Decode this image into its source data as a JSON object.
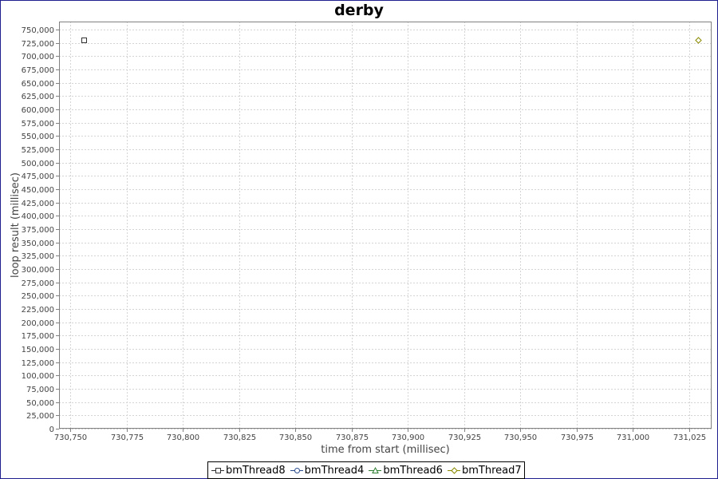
{
  "chart_data": {
    "type": "scatter",
    "title": "derby",
    "xlabel": "time from start (millisec)",
    "ylabel": "loop result (millisec)",
    "xlim": [
      730745,
      731035
    ],
    "ylim": [
      0,
      765000
    ],
    "x_ticks": [
      730750,
      730775,
      730800,
      730825,
      730850,
      730875,
      730900,
      730925,
      730950,
      730975,
      731000,
      731025
    ],
    "x_tick_labels": [
      "730,750",
      "730,775",
      "730,800",
      "730,825",
      "730,850",
      "730,875",
      "730,900",
      "730,925",
      "730,950",
      "730,975",
      "731,000",
      "731,025"
    ],
    "y_ticks": [
      0,
      25000,
      50000,
      75000,
      100000,
      125000,
      150000,
      175000,
      200000,
      225000,
      250000,
      275000,
      300000,
      325000,
      350000,
      375000,
      400000,
      425000,
      450000,
      475000,
      500000,
      525000,
      550000,
      575000,
      600000,
      625000,
      650000,
      675000,
      700000,
      725000,
      750000
    ],
    "y_tick_labels": [
      "0",
      "25,000",
      "50,000",
      "75,000",
      "100,000",
      "125,000",
      "150,000",
      "175,000",
      "200,000",
      "225,000",
      "250,000",
      "275,000",
      "300,000",
      "325,000",
      "350,000",
      "375,000",
      "400,000",
      "425,000",
      "450,000",
      "475,000",
      "500,000",
      "525,000",
      "550,000",
      "575,000",
      "600,000",
      "625,000",
      "650,000",
      "675,000",
      "700,000",
      "725,000",
      "750,000"
    ],
    "grid": true,
    "legend_position": "bottom",
    "series": [
      {
        "name": "bmThread8",
        "marker": "square",
        "color": "#333333",
        "points": [
          {
            "x": 730756,
            "y": 730000
          }
        ]
      },
      {
        "name": "bmThread4",
        "marker": "circle",
        "color": "#2b4c8c",
        "points": []
      },
      {
        "name": "bmThread6",
        "marker": "triangle",
        "color": "#2e7d32",
        "points": []
      },
      {
        "name": "bmThread7",
        "marker": "diamond",
        "color": "#8a8a00",
        "points": [
          {
            "x": 731029,
            "y": 730000
          }
        ]
      }
    ]
  }
}
